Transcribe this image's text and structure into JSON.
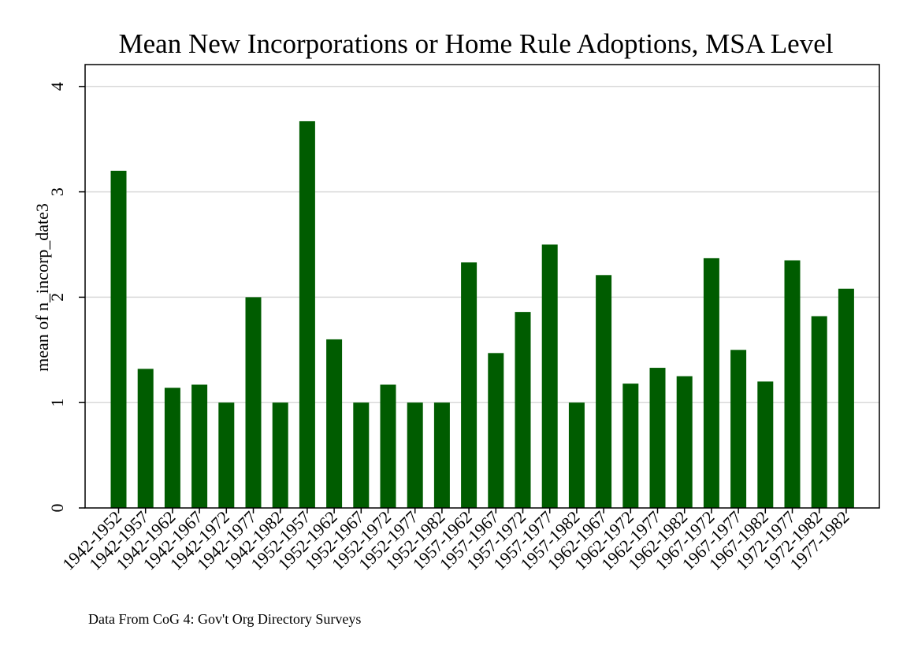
{
  "chart_data": {
    "type": "bar",
    "title": "Mean New Incorporations or Home Rule Adoptions, MSA Level",
    "ylabel": "mean of n_incorp_date3",
    "xlabel": "",
    "note": "Data From CoG 4: Gov't Org Directory Surveys",
    "ylim": [
      0,
      4.2
    ],
    "yticks": [
      0,
      1,
      2,
      3,
      4
    ],
    "grid": true,
    "legend": "none",
    "bar_color": "#005c00",
    "categories": [
      "1942-1952",
      "1942-1957",
      "1942-1962",
      "1942-1967",
      "1942-1972",
      "1942-1977",
      "1942-1982",
      "1952-1957",
      "1952-1962",
      "1952-1967",
      "1952-1972",
      "1952-1977",
      "1952-1982",
      "1957-1962",
      "1957-1967",
      "1957-1972",
      "1957-1977",
      "1957-1982",
      "1962-1967",
      "1962-1972",
      "1962-1977",
      "1962-1982",
      "1967-1972",
      "1967-1977",
      "1967-1982",
      "1972-1977",
      "1972-1982",
      "1977-1982"
    ],
    "values": [
      3.2,
      1.32,
      1.14,
      1.17,
      1.0,
      2.0,
      1.0,
      3.67,
      1.6,
      1.0,
      1.17,
      1.0,
      1.0,
      2.33,
      1.47,
      1.86,
      2.5,
      1.0,
      2.21,
      1.18,
      1.33,
      1.25,
      2.37,
      1.5,
      1.2,
      2.35,
      1.82,
      2.08
    ]
  }
}
